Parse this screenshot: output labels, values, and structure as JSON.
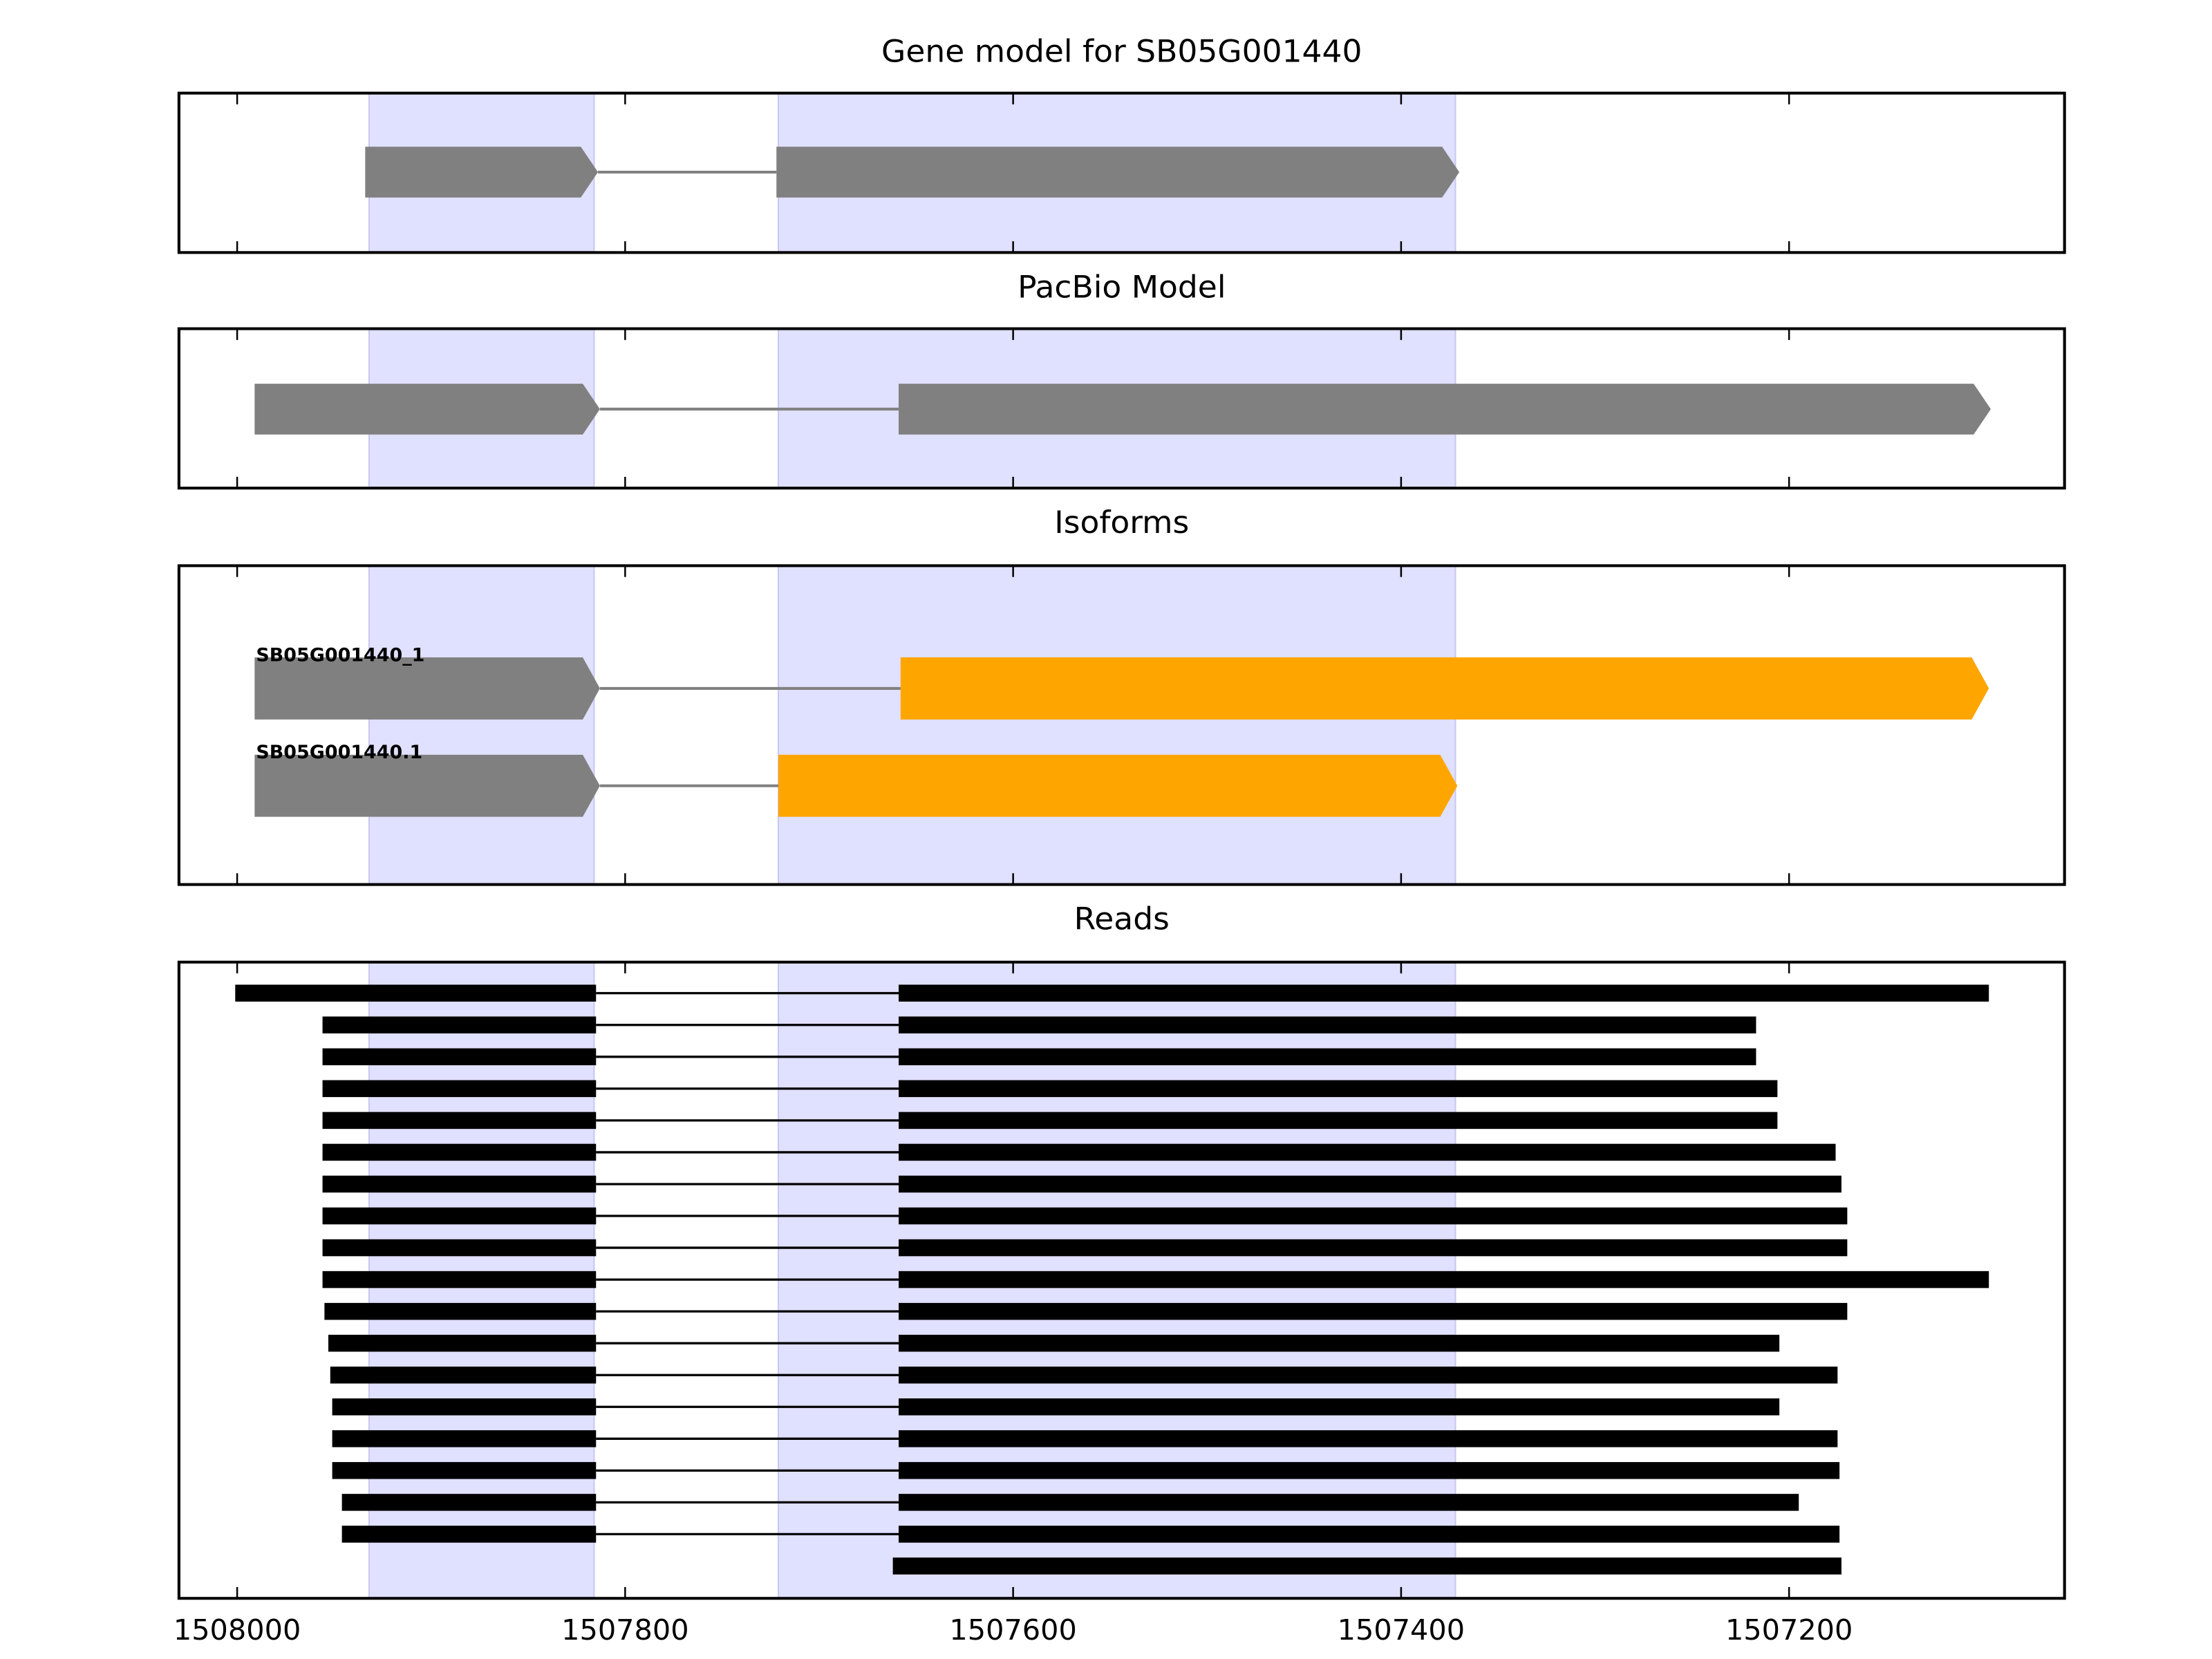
{
  "chart_data": [
    {
      "type": "gene_track",
      "title": "Gene model for SB05G001440",
      "xlim": [
        1508030,
        1507058
      ],
      "xticks": [
        1508000,
        1507800,
        1507600,
        1507400,
        1507200
      ],
      "highlights": [
        [
          1507932,
          1507816
        ],
        [
          1507721,
          1507372
        ]
      ],
      "highlight_color": "#e0e0ff",
      "color": "#808080",
      "intron_color": "#808080",
      "arrows": true,
      "tracks": [
        {
          "exons": [
            [
              1507934,
              1507814
            ],
            [
              1507722,
              1507370
            ]
          ]
        }
      ]
    },
    {
      "type": "gene_track",
      "title": "PacBio Model",
      "xlim": [
        1508030,
        1507058
      ],
      "xticks": [
        1508000,
        1507800,
        1507600,
        1507400,
        1507200
      ],
      "highlights": [
        [
          1507932,
          1507816
        ],
        [
          1507721,
          1507372
        ]
      ],
      "highlight_color": "#e0e0ff",
      "color": "#808080",
      "intron_color": "#808080",
      "arrows": true,
      "tracks": [
        {
          "exons": [
            [
              1507991,
              1507813
            ],
            [
              1507659,
              1507096
            ]
          ]
        }
      ]
    },
    {
      "type": "gene_track",
      "title": "Isoforms",
      "xlim": [
        1508030,
        1507058
      ],
      "xticks": [
        1508000,
        1507800,
        1507600,
        1507400,
        1507200
      ],
      "highlights": [
        [
          1507932,
          1507816
        ],
        [
          1507721,
          1507372
        ]
      ],
      "highlight_color": "#e0e0ff",
      "color": "#808080",
      "intron_color": "#808080",
      "arrows": true,
      "tracks": [
        {
          "label": "SB05G001440_1",
          "exon_colors": [
            "#808080",
            "#ffa500"
          ],
          "exons": [
            [
              1507991,
              1507813
            ],
            [
              1507658,
              1507097
            ]
          ]
        },
        {
          "label": "SB05G001440.1",
          "exon_colors": [
            "#808080",
            "#ffa500"
          ],
          "exons": [
            [
              1507991,
              1507813
            ],
            [
              1507721,
              1507371
            ]
          ]
        }
      ]
    },
    {
      "type": "gene_track",
      "title": "Reads",
      "xlim": [
        1508030,
        1507058
      ],
      "xticks": [
        1508000,
        1507800,
        1507600,
        1507400,
        1507200
      ],
      "highlights": [
        [
          1507932,
          1507816
        ],
        [
          1507721,
          1507372
        ]
      ],
      "highlight_color": "#e0e0ff",
      "color": "#000000",
      "intron_color": "#000000",
      "arrows": false,
      "tick_labels": true,
      "tracks": [
        {
          "exons": [
            [
              1508001,
              1507815
            ],
            [
              1507659,
              1507097
            ]
          ]
        },
        {
          "exons": [
            [
              1507956,
              1507815
            ],
            [
              1507659,
              1507217
            ]
          ]
        },
        {
          "exons": [
            [
              1507956,
              1507815
            ],
            [
              1507659,
              1507217
            ]
          ]
        },
        {
          "exons": [
            [
              1507956,
              1507815
            ],
            [
              1507659,
              1507206
            ]
          ]
        },
        {
          "exons": [
            [
              1507956,
              1507815
            ],
            [
              1507659,
              1507206
            ]
          ]
        },
        {
          "exons": [
            [
              1507956,
              1507815
            ],
            [
              1507659,
              1507176
            ]
          ]
        },
        {
          "exons": [
            [
              1507956,
              1507815
            ],
            [
              1507659,
              1507173
            ]
          ]
        },
        {
          "exons": [
            [
              1507956,
              1507815
            ],
            [
              1507659,
              1507170
            ]
          ]
        },
        {
          "exons": [
            [
              1507956,
              1507815
            ],
            [
              1507659,
              1507170
            ]
          ]
        },
        {
          "exons": [
            [
              1507956,
              1507815
            ],
            [
              1507659,
              1507097
            ]
          ]
        },
        {
          "exons": [
            [
              1507955,
              1507815
            ],
            [
              1507659,
              1507170
            ]
          ]
        },
        {
          "exons": [
            [
              1507953,
              1507815
            ],
            [
              1507659,
              1507205
            ]
          ]
        },
        {
          "exons": [
            [
              1507952,
              1507815
            ],
            [
              1507659,
              1507175
            ]
          ]
        },
        {
          "exons": [
            [
              1507951,
              1507815
            ],
            [
              1507659,
              1507205
            ]
          ]
        },
        {
          "exons": [
            [
              1507951,
              1507815
            ],
            [
              1507659,
              1507175
            ]
          ]
        },
        {
          "exons": [
            [
              1507951,
              1507815
            ],
            [
              1507659,
              1507174
            ]
          ]
        },
        {
          "exons": [
            [
              1507946,
              1507815
            ],
            [
              1507659,
              1507195
            ]
          ]
        },
        {
          "exons": [
            [
              1507946,
              1507815
            ],
            [
              1507659,
              1507174
            ]
          ]
        },
        {
          "exons": [
            [
              1507662,
              1507173
            ]
          ]
        }
      ]
    }
  ]
}
